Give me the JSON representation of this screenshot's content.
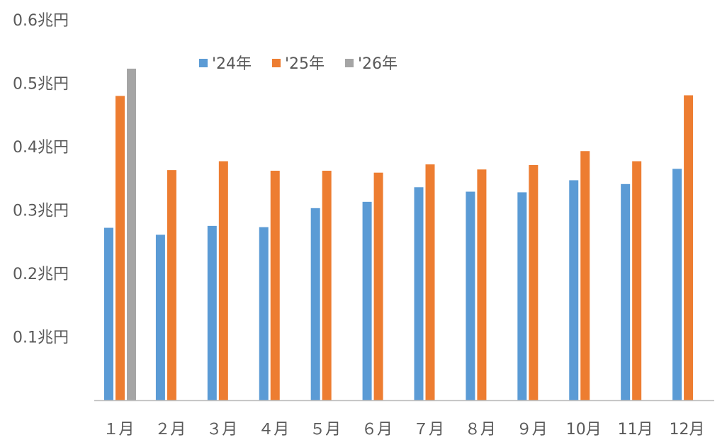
{
  "chart_data": {
    "type": "bar",
    "categories": [
      "１月",
      "２月",
      "３月",
      "４月",
      "５月",
      "６月",
      "７月",
      "８月",
      "９月",
      "10月",
      "11月",
      "12月"
    ],
    "series": [
      {
        "name": "'24年",
        "color": "#5B9BD5",
        "values": [
          0.272,
          0.261,
          0.275,
          0.273,
          0.303,
          0.313,
          0.336,
          0.329,
          0.328,
          0.347,
          0.341,
          0.365
        ]
      },
      {
        "name": "'25年",
        "color": "#ED7D31",
        "values": [
          0.48,
          0.363,
          0.377,
          0.362,
          0.362,
          0.359,
          0.372,
          0.364,
          0.371,
          0.393,
          0.377,
          0.481
        ]
      },
      {
        "name": "'26年",
        "color": "#A5A5A5",
        "values": [
          0.523,
          null,
          null,
          null,
          null,
          null,
          null,
          null,
          null,
          null,
          null,
          null
        ]
      }
    ],
    "ylim": [
      0,
      0.6
    ],
    "yticks": [
      {
        "value": 0.1,
        "label": "0.1兆円"
      },
      {
        "value": 0.2,
        "label": "0.2兆円"
      },
      {
        "value": 0.3,
        "label": "0.3兆円"
      },
      {
        "value": 0.4,
        "label": "0.4兆円"
      },
      {
        "value": 0.5,
        "label": "0.5兆円"
      },
      {
        "value": 0.6,
        "label": "0.6兆円"
      }
    ],
    "grid": false,
    "legend_position": "top-center",
    "axis_color": "#BFBFBF"
  }
}
